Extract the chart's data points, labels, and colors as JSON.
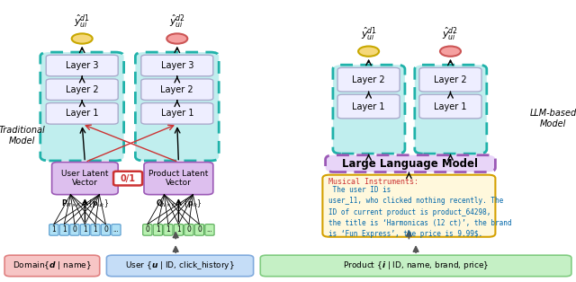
{
  "traditional_label": "Traditional\nModel",
  "llm_label": "LLM-based\nModel",
  "color_teal_bg": "#c0eeee",
  "color_teal_edge": "#20b2aa",
  "color_purple_light": "#ddbfee",
  "color_purple_edge": "#9b59b6",
  "color_layer_bg": "#eeeeff",
  "color_layer_edge": "#aaaacc",
  "color_yellow_circle": "#f5d87a",
  "color_yellow_edge": "#c8a800",
  "color_pink_circle": "#f5a0a0",
  "color_pink_edge": "#cc5555",
  "color_llm_bg": "#e8d5f8",
  "color_llm_edge": "#9b59b6",
  "color_prompt_bg": "#fff8dc",
  "color_prompt_edge": "#d4a000",
  "color_red": "#cc3333",
  "color_blue_text": "#0066aa",
  "color_green_text": "#008800",
  "bottom_colors": [
    "#f7c5c5",
    "#c5ddf7",
    "#c5f0c5"
  ],
  "bottom_edge_colors": [
    "#e08080",
    "#80aadd",
    "#80cc80"
  ],
  "binary_left": [
    "1",
    "1",
    "0",
    "1",
    "1",
    "0",
    "..."
  ],
  "binary_right": [
    "0",
    "1",
    "1",
    "1",
    "0",
    "0",
    "..."
  ]
}
